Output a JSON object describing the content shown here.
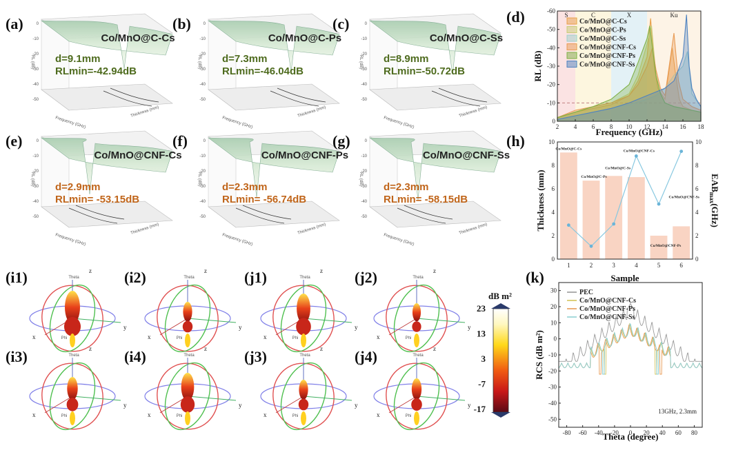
{
  "panel_labels": {
    "a": "(a)",
    "b": "(b)",
    "c": "(c)",
    "d": "(d)",
    "e": "(e)",
    "f": "(f)",
    "g": "(g)",
    "h": "(h)",
    "i1": "(i1)",
    "i2": "(i2)",
    "i3": "(i3)",
    "i4": "(i4)",
    "j1": "(j1)",
    "j2": "(j2)",
    "j3": "(j3)",
    "j4": "(j4)",
    "k": "(k)"
  },
  "surface_panels": [
    {
      "title": "Co/MnO@C-Cs",
      "d": "d=9.1mm",
      "rl": "RLmin=-42.94dB",
      "color": "#4e6b1e"
    },
    {
      "title": "Co/MnO@C-Ps",
      "d": "d=7.3mm",
      "rl": "RLmin=-46.04dB",
      "color": "#4e6b1e"
    },
    {
      "title": "Co/MnO@C-Ss",
      "d": "d=8.9mm",
      "rl": "RLmin=-50.72dB",
      "color": "#4e6b1e"
    },
    {
      "title": "Co/MnO@CNF-Cs",
      "d": "d=2.9mm",
      "rl": "RLmin= -53.15dB",
      "color": "#c0651a"
    },
    {
      "title": "Co/MnO@CNF-Ps",
      "d": "d=2.3mm",
      "rl": "RLmin= -56.74dB",
      "color": "#c0651a"
    },
    {
      "title": "Co/MnO@CNF-Ss",
      "d": "d=2.3mm",
      "rl": "RLmin= -58.15dB",
      "color": "#c0651a"
    }
  ],
  "surface_axes": {
    "ylabel": "RL (dB)",
    "xlabel": "Frequency (GHz)",
    "zlabel": "Thickness (mm)",
    "ticks": [
      "0",
      "-10",
      "-20",
      "-30",
      "-40",
      "-50"
    ]
  },
  "radar": {
    "z": "z",
    "y": "y",
    "x": "x",
    "theta": "Theta",
    "phi": "Phi",
    "colorbar_title": "dB m²",
    "colorbar_ticks": [
      "23",
      "13",
      "3",
      "-7",
      "-17"
    ]
  },
  "chart_data": [
    {
      "panel": "d",
      "type": "line",
      "xlabel": "Frequency (GHz)",
      "ylabel": "RL (dB)",
      "xlim": [
        2,
        18
      ],
      "ylim": [
        0,
        -60
      ],
      "xticks": [
        2,
        4,
        6,
        8,
        10,
        12,
        14,
        16,
        18
      ],
      "yticks": [
        0,
        -10,
        -20,
        -30,
        -40,
        -50,
        -60
      ],
      "bands": [
        {
          "name": "S",
          "from": 2,
          "to": 4
        },
        {
          "name": "C",
          "from": 4,
          "to": 8
        },
        {
          "name": "X",
          "from": 8,
          "to": 12
        },
        {
          "name": "Ku",
          "from": 12,
          "to": 18
        }
      ],
      "threshold": -10,
      "series": [
        {
          "name": "Co/MnO@C-Cs",
          "color": "#e8a04a",
          "x": [
            2,
            4,
            6,
            8,
            10,
            11,
            12,
            12.4,
            12.8,
            13.2,
            14,
            14.8,
            15.2,
            15.6,
            16,
            17,
            18
          ],
          "y": [
            -2,
            -5,
            -7,
            -9,
            -14,
            -22,
            -35,
            -56,
            -30,
            -18,
            -12,
            -40,
            -25,
            -12,
            -8,
            -6,
            -5
          ]
        },
        {
          "name": "Co/MnO@C-Ps",
          "color": "#c8cc78",
          "x": [
            2,
            4,
            6,
            8,
            10,
            11,
            12,
            12.5,
            13,
            13.5,
            14,
            15,
            16,
            17,
            18
          ],
          "y": [
            -2,
            -5,
            -8,
            -10,
            -15,
            -25,
            -42,
            -52,
            -25,
            -15,
            -10,
            -8,
            -7,
            -6,
            -5
          ]
        },
        {
          "name": "Co/MnO@C-Ss",
          "color": "#9fd0cc",
          "x": [
            2,
            4,
            6,
            8,
            10,
            12,
            13,
            14,
            15,
            16,
            16.5,
            17,
            18
          ],
          "y": [
            -1,
            -3,
            -5,
            -7,
            -9,
            -12,
            -14,
            -18,
            -25,
            -30,
            -38,
            -15,
            -8
          ]
        },
        {
          "name": "Co/MnO@CNF-Cs",
          "color": "#e89b55",
          "x": [
            2,
            4,
            6,
            8,
            10,
            11,
            12,
            12.6,
            13,
            13.5,
            14,
            15,
            15.5,
            16,
            17,
            18
          ],
          "y": [
            -2,
            -6,
            -8,
            -10,
            -14,
            -20,
            -30,
            -40,
            -28,
            -18,
            -14,
            -48,
            -22,
            -12,
            -8,
            -6
          ]
        },
        {
          "name": "Co/MnO@CNF-Ps",
          "color": "#7fb046",
          "x": [
            2,
            4,
            6,
            8,
            10,
            11,
            12,
            12.3,
            12.6,
            13,
            13.5,
            14,
            15,
            16,
            17,
            18
          ],
          "y": [
            -2,
            -5,
            -8,
            -12,
            -20,
            -32,
            -45,
            -52,
            -40,
            -25,
            -15,
            -10,
            -8,
            -7,
            -6,
            -5
          ]
        },
        {
          "name": "Co/MnO@CNF-Ss",
          "color": "#4f83c0",
          "x": [
            2,
            4,
            6,
            8,
            10,
            12,
            13,
            14,
            15,
            15.5,
            16,
            16.4,
            16.7,
            17,
            17.5,
            18
          ],
          "y": [
            -1,
            -3,
            -5,
            -7,
            -10,
            -14,
            -16,
            -18,
            -22,
            -28,
            -35,
            -58,
            -30,
            -18,
            -12,
            -8
          ]
        }
      ]
    },
    {
      "panel": "h",
      "type": "bar",
      "xlabel": "Sample",
      "ylabel_left": "Thickness (mm)",
      "ylabel_right": "EAB",
      "ylabel_right_sub": "max",
      "ylabel_right_unit": "(GHz)",
      "ylim_left": [
        0,
        10
      ],
      "ylim_right": [
        0,
        10
      ],
      "categories": [
        "1",
        "2",
        "3",
        "4",
        "5",
        "6"
      ],
      "series": [
        {
          "name": "Thickness",
          "values": [
            9.1,
            6.7,
            7.1,
            7.0,
            2.0,
            2.8
          ]
        },
        {
          "name": "EABmax",
          "values": [
            2.9,
            1.1,
            3.0,
            8.8,
            4.7,
            9.2
          ]
        }
      ],
      "labels": [
        "Co/MnO@C-Cs",
        "Co/MnO@C-Ps",
        "Co/MnO@C-Ss",
        "Co/MnO@CNF-Cs",
        "Co/MnO@CNF-Ps",
        "Co/MnO@CNF-Ss"
      ]
    },
    {
      "panel": "k",
      "type": "line",
      "xlabel": "Theta (degree)",
      "ylabel": "RCS (dB m²)",
      "xlim": [
        -90,
        90
      ],
      "ylim": [
        -55,
        35
      ],
      "xticks": [
        -80,
        -60,
        -40,
        -20,
        0,
        20,
        40,
        60,
        80
      ],
      "yticks": [
        30,
        20,
        10,
        0,
        -10,
        -20,
        -30,
        -40,
        -50
      ],
      "annotation": "13GHz, 2.3mm",
      "series": [
        {
          "name": "PEC",
          "color": "#999999"
        },
        {
          "name": "Co/MnO@CNF-Cs",
          "color": "#d4c45a"
        },
        {
          "name": "Co/MnO@CNF-Ps",
          "color": "#e89b55"
        },
        {
          "name": "Co/MnO@CNF-Ss",
          "color": "#8fd0d4"
        }
      ]
    }
  ]
}
